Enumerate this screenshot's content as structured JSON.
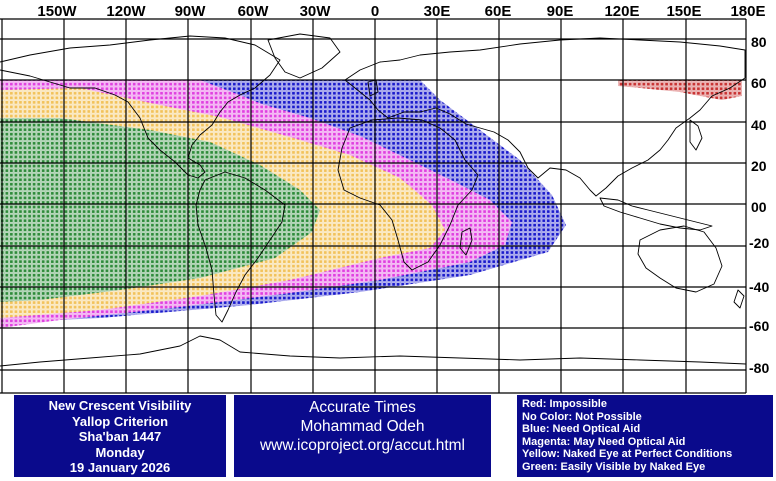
{
  "map": {
    "longitude_labels": [
      "150W",
      "120W",
      "90W",
      "60W",
      "30W",
      "0",
      "30E",
      "60E",
      "90E",
      "120E",
      "150E",
      "180E"
    ],
    "latitude_labels": [
      "80",
      "60",
      "40",
      "20",
      "00",
      "-20",
      "-40",
      "-60",
      "-80"
    ],
    "colors": {
      "red": "#c83232",
      "blue": "#1a1acc",
      "magenta": "#e040e0",
      "yellow": "#f2c25a",
      "green": "#2e8b3a",
      "grid": "#000000"
    }
  },
  "info": {
    "line1": "New Crescent Visibility",
    "line2": "Yallop Criterion",
    "line3": "Sha'ban 1447",
    "line4": "Monday",
    "line5": "19 January 2026"
  },
  "credit": {
    "line1": "Accurate Times",
    "line2": "Mohammad Odeh",
    "line3": "www.icoproject.org/accut.html"
  },
  "legend": {
    "red": "Red: Impossible",
    "none": "No Color: Not Possible",
    "blue": "Blue: Need Optical Aid",
    "magenta": "Magenta: May Need Optical Aid",
    "yellow": "Yellow: Naked Eye at Perfect Conditions",
    "green": "Green: Easily Visible by Naked Eye"
  }
}
